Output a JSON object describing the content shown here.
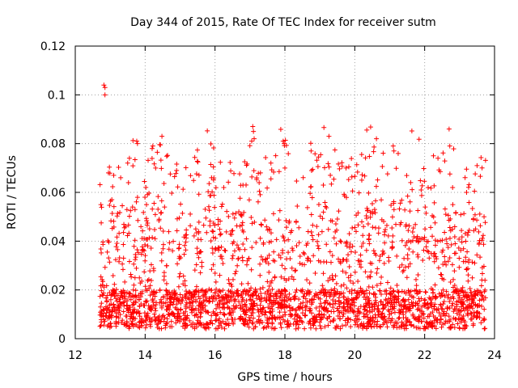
{
  "chart_data": {
    "type": "scatter",
    "title": "Day 344 of 2015, Rate Of TEC Index for receiver sutm",
    "xlabel": "GPS time / hours",
    "ylabel": "ROTI / TECUs",
    "xlim": [
      12,
      24
    ],
    "ylim": [
      0,
      0.12
    ],
    "xticks": [
      "12",
      "14",
      "16",
      "18",
      "20",
      "22",
      "24"
    ],
    "yticks": [
      "0",
      "0.02",
      "0.04",
      "0.06",
      "0.08",
      "0.1",
      "0.12"
    ],
    "grid": true,
    "marker": "+",
    "color": "#ff0000",
    "data_range": {
      "x_start": 12.7,
      "x_end": 23.75
    },
    "series": [
      {
        "name": "ROTI",
        "points": [
          [
            12.82,
            0.104
          ],
          [
            12.85,
            0.103
          ],
          [
            12.85,
            0.1
          ],
          [
            13.76,
            0.081
          ],
          [
            13.78,
            0.08
          ],
          [
            14.22,
            0.079
          ],
          [
            14.2,
            0.078
          ],
          [
            17.08,
            0.087
          ],
          [
            17.1,
            0.085
          ],
          [
            17.12,
            0.082
          ],
          [
            17.05,
            0.081
          ],
          [
            17.95,
            0.081
          ],
          [
            17.98,
            0.08
          ],
          [
            20.62,
            0.082
          ],
          [
            21.1,
            0.079
          ],
          [
            21.12,
            0.077
          ],
          [
            22.7,
            0.086
          ],
          [
            22.72,
            0.079
          ],
          [
            23.5,
            0.071
          ],
          [
            12.95,
            0.068
          ],
          [
            13.1,
            0.067
          ],
          [
            13.3,
            0.066
          ],
          [
            13.5,
            0.072
          ],
          [
            13.55,
            0.074
          ],
          [
            14.3,
            0.07
          ],
          [
            14.9,
            0.069
          ],
          [
            15.9,
            0.066
          ],
          [
            16.25,
            0.062
          ],
          [
            16.8,
            0.063
          ],
          [
            17.3,
            0.068
          ],
          [
            17.6,
            0.072
          ],
          [
            18.0,
            0.07
          ],
          [
            18.75,
            0.077
          ],
          [
            19.1,
            0.063
          ],
          [
            19.3,
            0.067
          ],
          [
            19.75,
            0.07
          ],
          [
            20.2,
            0.065
          ],
          [
            21.6,
            0.064
          ],
          [
            21.9,
            0.061
          ],
          [
            22.1,
            0.062
          ],
          [
            22.8,
            0.062
          ],
          [
            23.2,
            0.06
          ],
          [
            23.7,
            0.05
          ]
        ]
      }
    ]
  }
}
